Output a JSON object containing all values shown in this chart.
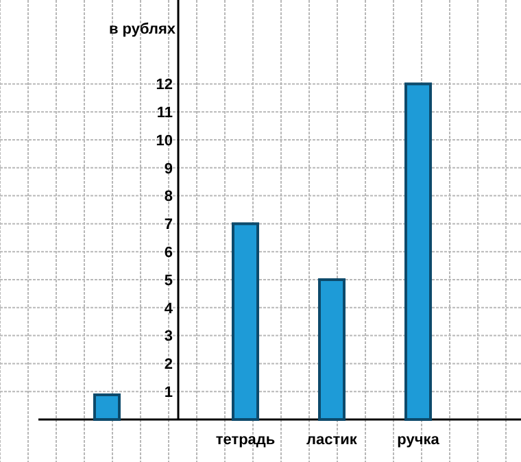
{
  "chart_data": {
    "type": "bar",
    "ylabel": "в рублях",
    "categories": [
      "тетрадь",
      "ластик",
      "ручка"
    ],
    "values": [
      7,
      5,
      12
    ],
    "color": "#1e9bd7",
    "ylim": [
      0,
      15
    ],
    "yticks": [
      1,
      2,
      3,
      4,
      5,
      6,
      7,
      8,
      9,
      10,
      11,
      12
    ],
    "grid": true
  }
}
